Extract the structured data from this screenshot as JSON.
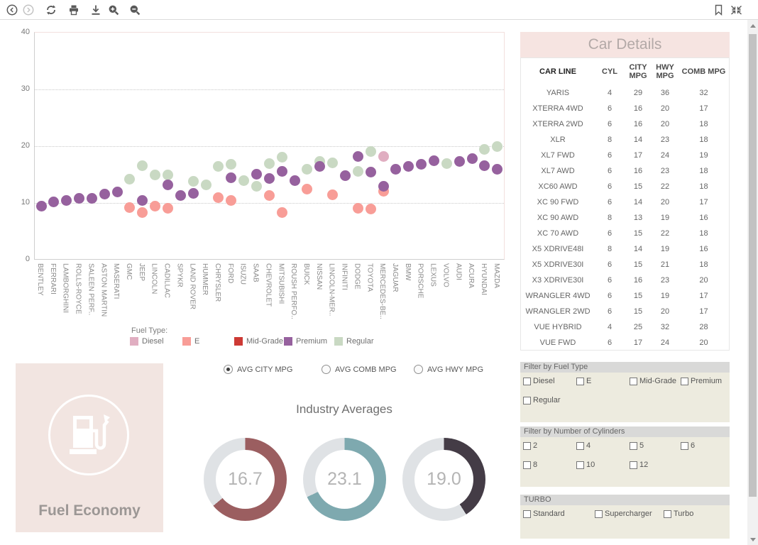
{
  "toolbar": {
    "icons": [
      "back",
      "forward",
      "refresh",
      "print",
      "download",
      "zoom-in",
      "zoom-out",
      "bookmark",
      "collapse"
    ]
  },
  "chart": {
    "legend_title": "Fuel Type:",
    "y_ticks": [
      0,
      10,
      20,
      30,
      40
    ],
    "colors": {
      "diesel": "#e0aec1",
      "e": "#f89d97",
      "midgrade": "#cd3a35",
      "premium": "#96619e",
      "regular": "#c9d9c3"
    },
    "legend": [
      {
        "label": "Diesel",
        "type": "diesel"
      },
      {
        "label": "E",
        "type": "e"
      },
      {
        "label": "Mid-Grade",
        "type": "midgrade"
      },
      {
        "label": "Premium",
        "type": "premium"
      },
      {
        "label": "Regular",
        "type": "regular"
      }
    ],
    "categories": [
      "BENTLEY",
      "FERRARI",
      "LAMBORGHINI",
      "ROLLS-ROYCE",
      "SALEEN PERF..",
      "ASTON MARTIN",
      "MASERATI",
      "GMC",
      "JEEP",
      "LINCOLN",
      "CADILLAC",
      "SPYKR",
      "LAND ROVER",
      "HUMMER",
      "CHRYSLER",
      "FORD",
      "ISUZU",
      "SAAB",
      "CHEVROLET",
      "MITSUBISHI",
      "ROUSH PERFO..",
      "BUICK",
      "NISSAN",
      "LINCOLN-MER..",
      "INFINITI",
      "DODGE",
      "TOYOTA",
      "MERCEDES-BE..",
      "JAGUAR",
      "BMW",
      "PORSCHE",
      "LEXUS",
      "VOLVO",
      "AUDI",
      "ACURA",
      "HYUNDAI",
      "MAZDA"
    ],
    "points": [
      {
        "c": 0,
        "t": "premium",
        "v": 9.5
      },
      {
        "c": 1,
        "t": "premium",
        "v": 10.2
      },
      {
        "c": 2,
        "t": "premium",
        "v": 10.4
      },
      {
        "c": 3,
        "t": "premium",
        "v": 10.8
      },
      {
        "c": 4,
        "t": "premium",
        "v": 10.8
      },
      {
        "c": 5,
        "t": "premium",
        "v": 11.6
      },
      {
        "c": 6,
        "t": "premium",
        "v": 11.9
      },
      {
        "c": 7,
        "t": "e",
        "v": 9.2
      },
      {
        "c": 7,
        "t": "regular",
        "v": 14.2
      },
      {
        "c": 8,
        "t": "e",
        "v": 8.3
      },
      {
        "c": 8,
        "t": "regular",
        "v": 16.6
      },
      {
        "c": 8,
        "t": "premium",
        "v": 10.5
      },
      {
        "c": 9,
        "t": "e",
        "v": 9.5
      },
      {
        "c": 9,
        "t": "regular",
        "v": 15.0
      },
      {
        "c": 10,
        "t": "e",
        "v": 9.1
      },
      {
        "c": 10,
        "t": "regular",
        "v": 14.9
      },
      {
        "c": 10,
        "t": "premium",
        "v": 13.2
      },
      {
        "c": 11,
        "t": "premium",
        "v": 11.3
      },
      {
        "c": 12,
        "t": "regular",
        "v": 13.8
      },
      {
        "c": 12,
        "t": "premium",
        "v": 11.7
      },
      {
        "c": 13,
        "t": "regular",
        "v": 13.2
      },
      {
        "c": 14,
        "t": "e",
        "v": 10.9
      },
      {
        "c": 14,
        "t": "regular",
        "v": 16.5
      },
      {
        "c": 15,
        "t": "e",
        "v": 10.4
      },
      {
        "c": 15,
        "t": "regular",
        "v": 16.8
      },
      {
        "c": 15,
        "t": "premium",
        "v": 14.5
      },
      {
        "c": 16,
        "t": "regular",
        "v": 13.9
      },
      {
        "c": 17,
        "t": "regular",
        "v": 12.9
      },
      {
        "c": 17,
        "t": "premium",
        "v": 15.1
      },
      {
        "c": 18,
        "t": "e",
        "v": 11.3
      },
      {
        "c": 18,
        "t": "regular",
        "v": 16.9
      },
      {
        "c": 18,
        "t": "premium",
        "v": 14.3
      },
      {
        "c": 19,
        "t": "e",
        "v": 8.3
      },
      {
        "c": 19,
        "t": "regular",
        "v": 18.1
      },
      {
        "c": 19,
        "t": "premium",
        "v": 15.6
      },
      {
        "c": 20,
        "t": "premium",
        "v": 14.0
      },
      {
        "c": 21,
        "t": "e",
        "v": 12.5
      },
      {
        "c": 21,
        "t": "regular",
        "v": 16.0
      },
      {
        "c": 22,
        "t": "regular",
        "v": 17.3
      },
      {
        "c": 22,
        "t": "premium",
        "v": 16.5
      },
      {
        "c": 23,
        "t": "e",
        "v": 11.5
      },
      {
        "c": 23,
        "t": "regular",
        "v": 17.1
      },
      {
        "c": 24,
        "t": "premium",
        "v": 14.8
      },
      {
        "c": 25,
        "t": "e",
        "v": 9.1
      },
      {
        "c": 25,
        "t": "regular",
        "v": 15.6
      },
      {
        "c": 25,
        "t": "premium",
        "v": 18.2
      },
      {
        "c": 26,
        "t": "e",
        "v": 9.0
      },
      {
        "c": 26,
        "t": "regular",
        "v": 19.1
      },
      {
        "c": 26,
        "t": "premium",
        "v": 15.4
      },
      {
        "c": 27,
        "t": "e",
        "v": 12.1
      },
      {
        "c": 27,
        "t": "diesel",
        "v": 18.2
      },
      {
        "c": 27,
        "t": "premium",
        "v": 12.9
      },
      {
        "c": 28,
        "t": "premium",
        "v": 16.0
      },
      {
        "c": 29,
        "t": "premium",
        "v": 16.5
      },
      {
        "c": 30,
        "t": "premium",
        "v": 16.8
      },
      {
        "c": 31,
        "t": "premium",
        "v": 17.5
      },
      {
        "c": 32,
        "t": "regular",
        "v": 17.0
      },
      {
        "c": 33,
        "t": "premium",
        "v": 17.3
      },
      {
        "c": 34,
        "t": "premium",
        "v": 17.8
      },
      {
        "c": 35,
        "t": "regular",
        "v": 19.4
      },
      {
        "c": 35,
        "t": "premium",
        "v": 16.6
      },
      {
        "c": 36,
        "t": "regular",
        "v": 19.9
      },
      {
        "c": 36,
        "t": "premium",
        "v": 15.9
      }
    ]
  },
  "car_details": {
    "title": "Car Details",
    "columns": [
      "CAR LINE",
      "CYL",
      "CITY MPG",
      "HWY MPG",
      "COMB MPG"
    ],
    "rows": [
      [
        "YARIS",
        4,
        29,
        36,
        32
      ],
      [
        "XTERRA 4WD",
        6,
        16,
        20,
        17
      ],
      [
        "XTERRA 2WD",
        6,
        16,
        20,
        18
      ],
      [
        "XLR",
        8,
        14,
        23,
        18
      ],
      [
        "XL7 FWD",
        6,
        17,
        24,
        19
      ],
      [
        "XL7 AWD",
        6,
        16,
        23,
        18
      ],
      [
        "XC60 AWD",
        6,
        15,
        22,
        18
      ],
      [
        "XC 90 FWD",
        6,
        14,
        20,
        17
      ],
      [
        "XC 90 AWD",
        8,
        13,
        19,
        16
      ],
      [
        "XC 70 AWD",
        6,
        15,
        22,
        18
      ],
      [
        "X5 XDRIVE48I",
        8,
        14,
        19,
        16
      ],
      [
        "X5 XDRIVE30I",
        6,
        15,
        21,
        18
      ],
      [
        "X3 XDRIVE30I",
        6,
        16,
        23,
        20
      ],
      [
        "WRANGLER 4WD",
        6,
        15,
        19,
        17
      ],
      [
        "WRANGLER 2WD",
        6,
        15,
        20,
        17
      ],
      [
        "VUE HYBRID",
        4,
        25,
        32,
        28
      ],
      [
        "VUE FWD",
        6,
        17,
        24,
        20
      ]
    ]
  },
  "fuel_card": {
    "label": "Fuel Economy"
  },
  "averages": {
    "title": "Industry Averages",
    "radios": [
      {
        "label": "AVG CITY MPG",
        "selected": true
      },
      {
        "label": "AVG COMB MPG",
        "selected": false
      },
      {
        "label": "AVG HWY MPG",
        "selected": false
      }
    ],
    "donuts": [
      {
        "value": "16.7",
        "fraction": 0.64,
        "color": "#9b5e60"
      },
      {
        "value": "23.1",
        "fraction": 0.68,
        "color": "#7ea9af"
      },
      {
        "value": "19.0",
        "fraction": 0.41,
        "color": "#443c46"
      }
    ],
    "track_color": "#dfe2e5"
  },
  "filters": [
    {
      "title": "Filter by Fuel Type",
      "options": [
        "Diesel",
        "E",
        "Mid-Grade",
        "Premium",
        "Regular"
      ],
      "checked": [
        false,
        false,
        false,
        false,
        false
      ]
    },
    {
      "title": "Filter by Number of Cylinders",
      "options": [
        "2",
        "4",
        "5",
        "6",
        "8",
        "10",
        "12"
      ],
      "checked": [
        false,
        false,
        false,
        false,
        false,
        false,
        false
      ]
    },
    {
      "title": "TURBO",
      "options": [
        "Standard",
        "Supercharger",
        "Turbo"
      ],
      "checked": [
        false,
        false,
        false
      ]
    }
  ]
}
